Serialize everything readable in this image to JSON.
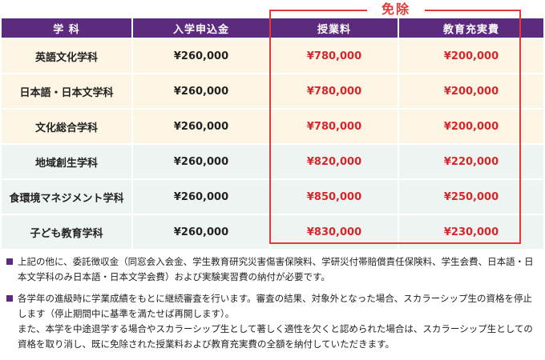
{
  "table": {
    "headers": [
      "学 科",
      "入学申込金",
      "授業料",
      "教育充実費"
    ],
    "rows": [
      {
        "dept": "英語文化学科",
        "app_fee": "¥260,000",
        "tuition": "¥780,000",
        "enrichment": "¥200,000"
      },
      {
        "dept": "日本語・日本文学科",
        "app_fee": "¥260,000",
        "tuition": "¥780,000",
        "enrichment": "¥200,000"
      },
      {
        "dept": "文化総合学科",
        "app_fee": "¥260,000",
        "tuition": "¥780,000",
        "enrichment": "¥200,000"
      },
      {
        "dept": "地域創生学科",
        "app_fee": "¥260,000",
        "tuition": "¥820,000",
        "enrichment": "¥220,000"
      },
      {
        "dept": "食環境マネジメント学科",
        "app_fee": "¥260,000",
        "tuition": "¥850,000",
        "enrichment": "¥250,000"
      },
      {
        "dept": "子ども教育学科",
        "app_fee": "¥260,000",
        "tuition": "¥830,000",
        "enrichment": "¥230,000"
      }
    ]
  },
  "exempt_label": "免除",
  "notes": [
    {
      "lines": [
        "上記の他に、委託徴収金（同窓会入会金、学生教育研究災害傷害保険料、学研災付帯賠償責任保険料、学生会費、日本語・日本文学科のみ日本語・日本文学会費）および実験実習費の納付が必要です。"
      ]
    },
    {
      "lines": [
        "各学年の進級時に学業成績をもとに継続審査を行います。審査の結果、対象外となった場合、スカラーシップ生の資格を停止します（停止期間中に基準を満たせば再開します）。",
        "また、本学を中途退学する場合やスカラーシップ生として著しく適性を欠くと認められた場合は、スカラーシップ生としての資格を取り消し、既に免除された授業料および教育充実費の全額を納付していただきます。"
      ]
    }
  ],
  "colors": {
    "header_bg": "#5d2b7d",
    "row_warm": "#fdf5e4",
    "row_cool": "#eef4f1",
    "exempt_red": "#e23a3a",
    "fee_red": "#d6262b"
  }
}
